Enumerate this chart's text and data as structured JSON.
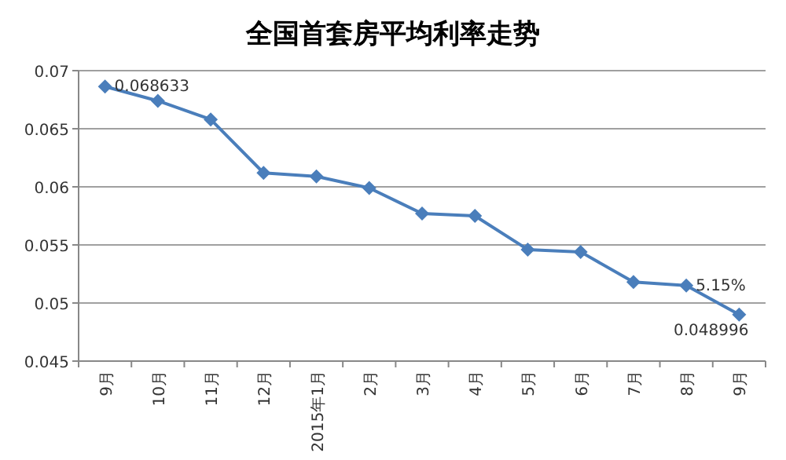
{
  "chart_data": {
    "type": "line",
    "title": "全国首套房平均利率走势",
    "categories": [
      "9月",
      "10月",
      "11月",
      "12月",
      "2015年1月",
      "2月",
      "3月",
      "4月",
      "5月",
      "6月",
      "7月",
      "8月",
      "9月"
    ],
    "values": [
      0.068633,
      0.0674,
      0.0658,
      0.0612,
      0.0609,
      0.0599,
      0.0577,
      0.0575,
      0.0546,
      0.0544,
      0.0518,
      0.0515,
      0.048996
    ],
    "value_labels": [
      "0.068633",
      null,
      null,
      null,
      null,
      null,
      null,
      null,
      null,
      null,
      null,
      "5.15%",
      "0.048996"
    ],
    "color": "#4a7ebb",
    "marker": "diamond",
    "grid": "y",
    "ylim": [
      0.045,
      0.07
    ],
    "yticks": [
      0.045,
      0.05,
      0.055,
      0.06,
      0.065,
      0.07
    ]
  }
}
